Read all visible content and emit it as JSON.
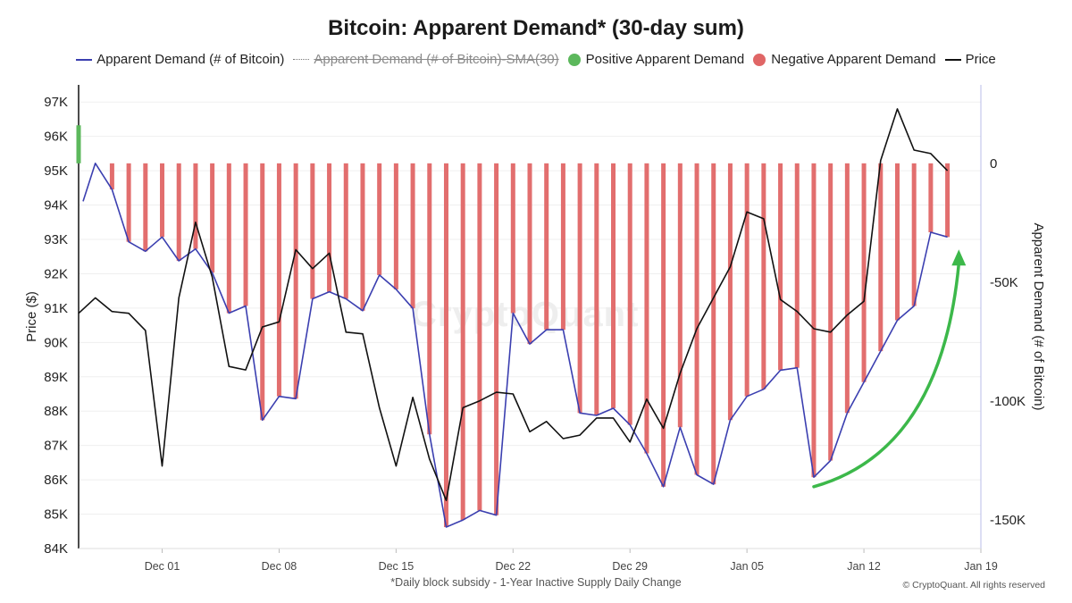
{
  "chart_data": {
    "type": "bar",
    "title": "Bitcoin: Apparent Demand* (30-day sum)",
    "footnote": "*Daily block subsidy - 1-Year Inactive Supply Daily Change",
    "copyright": "© CryptoQuant. All rights reserved",
    "watermark": "CryptoQuant",
    "legend": [
      {
        "label": "Apparent Demand (# of Bitcoin)",
        "color": "#3b3fb0",
        "style": "line",
        "disabled": false
      },
      {
        "label": "Apparent Demand (# of Bitcoin)-SMA(30)",
        "color": "#8a8a8a",
        "style": "dotted",
        "disabled": true
      },
      {
        "label": "Positive Apparent Demand",
        "color": "#5cb85c",
        "style": "dot",
        "disabled": false
      },
      {
        "label": "Negative Apparent Demand",
        "color": "#e06666",
        "style": "dot",
        "disabled": false
      },
      {
        "label": "Price",
        "color": "#111111",
        "style": "line",
        "disabled": false
      }
    ],
    "x_ticks": [
      "Dec 01",
      "Dec 08",
      "Dec 15",
      "Dec 22",
      "Dec 29",
      "Jan 05",
      "Jan 12",
      "Jan 19"
    ],
    "x_start": "2024-11-26",
    "x_end": "2025-01-19",
    "left_axis": {
      "label": "Price ($)",
      "ticks": [
        "84K",
        "85K",
        "86K",
        "87K",
        "88K",
        "89K",
        "90K",
        "91K",
        "92K",
        "93K",
        "94K",
        "95K",
        "96K",
        "97K"
      ],
      "range": [
        84000,
        97500
      ]
    },
    "right_axis": {
      "label": "Apparent Demand (# of Bitcoin)",
      "ticks": [
        "0",
        "-50K",
        "-100K",
        "-150K"
      ],
      "range": [
        -162000,
        33000
      ]
    },
    "series": [
      {
        "name": "Apparent Demand (# of Bitcoin)",
        "x": [
          "2024-11-26",
          "2024-11-27",
          "2024-11-28",
          "2024-11-29",
          "2024-11-30",
          "2024-12-01",
          "2024-12-02",
          "2024-12-03",
          "2024-12-04",
          "2024-12-05",
          "2024-12-06",
          "2024-12-07",
          "2024-12-08",
          "2024-12-09",
          "2024-12-10",
          "2024-12-11",
          "2024-12-12",
          "2024-12-13",
          "2024-12-14",
          "2024-12-15",
          "2024-12-16",
          "2024-12-17",
          "2024-12-18",
          "2024-12-19",
          "2024-12-20",
          "2024-12-21",
          "2024-12-22",
          "2024-12-23",
          "2024-12-24",
          "2024-12-25",
          "2024-12-26",
          "2024-12-27",
          "2024-12-28",
          "2024-12-29",
          "2024-12-30",
          "2024-12-31",
          "2025-01-01",
          "2025-01-02",
          "2025-01-03",
          "2025-01-04",
          "2025-01-05",
          "2025-01-06",
          "2025-01-07",
          "2025-01-08",
          "2025-01-09",
          "2025-01-10",
          "2025-01-11",
          "2025-01-12",
          "2025-01-13",
          "2025-01-14",
          "2025-01-15",
          "2025-01-16",
          "2025-01-17"
        ],
        "values": [
          16000,
          0,
          -11000,
          -33000,
          -37000,
          -31000,
          -41000,
          -36000,
          -46000,
          -63000,
          -60000,
          -108000,
          -98000,
          -99000,
          -57000,
          -54000,
          -57000,
          -62000,
          -47000,
          -53000,
          -61000,
          -114000,
          -153000,
          -150000,
          -146000,
          -148000,
          -63000,
          -76000,
          -70000,
          -70000,
          -105000,
          -106000,
          -103000,
          -110000,
          -122000,
          -136000,
          -111000,
          -131000,
          -135000,
          -108000,
          -98000,
          -95000,
          -87000,
          -86000,
          -132000,
          -125000,
          -105000,
          -92000,
          -79000,
          -66000,
          -60000,
          -29000,
          -31000
        ]
      },
      {
        "name": "Price",
        "x": [
          "2024-11-26",
          "2024-11-27",
          "2024-11-28",
          "2024-11-29",
          "2024-11-30",
          "2024-12-01",
          "2024-12-02",
          "2024-12-03",
          "2024-12-04",
          "2024-12-05",
          "2024-12-06",
          "2024-12-07",
          "2024-12-08",
          "2024-12-09",
          "2024-12-10",
          "2024-12-11",
          "2024-12-12",
          "2024-12-13",
          "2024-12-14",
          "2024-12-15",
          "2024-12-16",
          "2024-12-17",
          "2024-12-18",
          "2024-12-19",
          "2024-12-20",
          "2024-12-21",
          "2024-12-22",
          "2024-12-23",
          "2024-12-24",
          "2024-12-25",
          "2024-12-26",
          "2024-12-27",
          "2024-12-28",
          "2024-12-29",
          "2024-12-30",
          "2024-12-31",
          "2025-01-01",
          "2025-01-02",
          "2025-01-03",
          "2025-01-04",
          "2025-01-05",
          "2025-01-06",
          "2025-01-07",
          "2025-01-08",
          "2025-01-09",
          "2025-01-10",
          "2025-01-11",
          "2025-01-12",
          "2025-01-13",
          "2025-01-14",
          "2025-01-15",
          "2025-01-16",
          "2025-01-17"
        ],
        "values": [
          90850,
          91300,
          90900,
          90850,
          90350,
          86400,
          91300,
          93500,
          91900,
          89300,
          89200,
          90450,
          90600,
          92700,
          92150,
          92600,
          90300,
          90250,
          88100,
          86400,
          88400,
          86600,
          85400,
          88100,
          88300,
          88550,
          88500,
          87400,
          87700,
          87200,
          87300,
          87800,
          87800,
          87100,
          88350,
          87500,
          89100,
          90400,
          91300,
          92200,
          93800,
          93600,
          91250,
          90900,
          90400,
          90300,
          90800,
          91200,
          95300,
          96800,
          95600,
          95500,
          95000
        ]
      }
    ],
    "annotations": [
      {
        "type": "arrow",
        "color": "#3cb84a",
        "from": "2025-01-09",
        "to": "2025-01-18",
        "meaning": "upward trend in apparent demand"
      }
    ]
  }
}
